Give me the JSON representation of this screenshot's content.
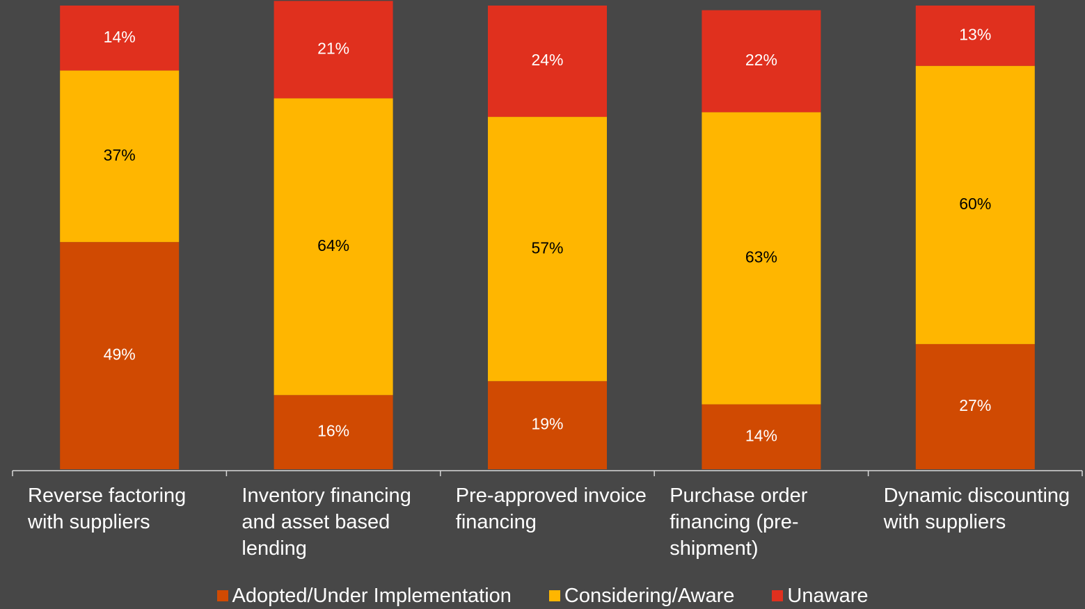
{
  "chart_data": {
    "type": "stacked_bar",
    "categories": [
      "Reverse factoring with suppliers",
      "Inventory financing and asset based lending",
      "Pre-approved invoice financing",
      "Purchase order financing (pre-shipment)",
      "Dynamic discounting with suppliers"
    ],
    "series": [
      {
        "name": "Adopted/Under Implementation",
        "color": "#d04a02",
        "label_color": "#ffffff",
        "values": [
          49,
          16,
          19,
          14,
          27
        ],
        "value_labels": [
          "49%",
          "16%",
          "19%",
          "14%",
          "27%"
        ]
      },
      {
        "name": "Considering/Aware",
        "color": "#ffb600",
        "label_color": "#000000",
        "values": [
          37,
          64,
          57,
          63,
          60
        ],
        "value_labels": [
          "37%",
          "64%",
          "57%",
          "63%",
          "60%"
        ]
      },
      {
        "name": "Unaware",
        "color": "#e0301e",
        "label_color": "#ffffff",
        "values": [
          14,
          21,
          24,
          22,
          13
        ],
        "value_labels": [
          "14%",
          "21%",
          "24%",
          "22%",
          "13%"
        ]
      }
    ],
    "ylim": [
      0,
      100
    ],
    "legend": "bottom"
  }
}
